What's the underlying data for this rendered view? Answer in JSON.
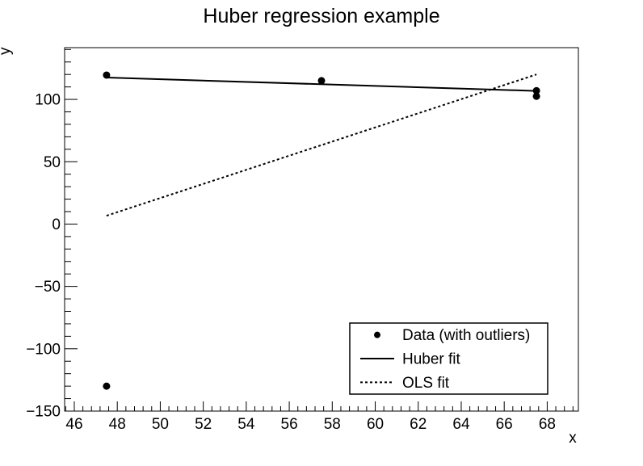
{
  "chart_data": {
    "type": "scatter",
    "title": "Huber regression example",
    "xlabel": "x",
    "ylabel": "y",
    "xlim": [
      45.55,
      69.45
    ],
    "ylim": [
      -150,
      141.5
    ],
    "xticks": [
      46,
      48,
      50,
      52,
      54,
      56,
      58,
      60,
      62,
      64,
      66,
      68
    ],
    "yticks": [
      -150,
      -100,
      -50,
      0,
      50,
      100
    ],
    "x_minor_step": 0.4,
    "y_minor_step": 10,
    "grid": false,
    "background_color": "#ffffff",
    "foreground_color": "#000000",
    "legend_position": "bottom-right-inside",
    "series": [
      {
        "name": "Data (with outliers)",
        "key": "data-points",
        "type": "scatter",
        "marker": "filled-circle",
        "color": "#000000",
        "x": [
          47.5,
          57.5,
          67.5,
          67.5,
          47.5
        ],
        "y": [
          119.5,
          115,
          107,
          102.5,
          -130
        ]
      },
      {
        "name": "Huber fit",
        "key": "huber-fit",
        "type": "line",
        "style": "solid",
        "color": "#000000",
        "x": [
          47.5,
          67.5
        ],
        "y": [
          117.5,
          106.8
        ]
      },
      {
        "name": "OLS fit",
        "key": "ols-fit",
        "type": "line",
        "style": "dotted",
        "color": "#000000",
        "x": [
          47.5,
          67.5
        ],
        "y": [
          6.7,
          120
        ]
      }
    ]
  }
}
